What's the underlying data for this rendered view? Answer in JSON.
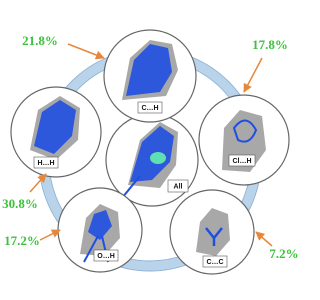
{
  "center": {
    "label": "All"
  },
  "panels": [
    {
      "label": "C…H",
      "percent": "21.8%"
    },
    {
      "label": "Cl…H",
      "percent": "17.8%"
    },
    {
      "label": "C…C",
      "percent": "7.2%"
    },
    {
      "label": "O…H",
      "percent": "17.2%"
    },
    {
      "label": "H…H",
      "percent": "30.8%"
    }
  ]
}
